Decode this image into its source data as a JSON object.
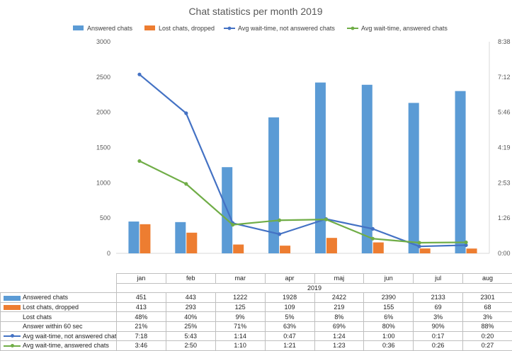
{
  "chart_data": {
    "type": "bar",
    "title": "Chat statistics per month 2019",
    "year_label": "2019",
    "categories": [
      "jan",
      "feb",
      "mar",
      "apr",
      "maj",
      "jun",
      "jul",
      "aug"
    ],
    "y_left": {
      "ylim": [
        0,
        3000
      ],
      "ticks": [
        "0",
        "500",
        "1000",
        "1500",
        "2000",
        "2500",
        "3000"
      ]
    },
    "y_right": {
      "ylim_seconds": [
        0,
        518
      ],
      "ticks": [
        "0:00",
        "1:26",
        "2:53",
        "4:19",
        "5:46",
        "7:12",
        "8:38"
      ]
    },
    "legend_position": "top",
    "gridlines": false,
    "series": [
      {
        "name": "Answered chats",
        "kind": "bar",
        "axis": "left",
        "color": "#5b9bd5",
        "values": [
          451,
          443,
          1222,
          1928,
          2422,
          2390,
          2133,
          2301
        ],
        "labels": [
          "451",
          "443",
          "1222",
          "1928",
          "2422",
          "2390",
          "2133",
          "2301"
        ]
      },
      {
        "name": "Lost chats, dropped",
        "kind": "bar",
        "axis": "left",
        "color": "#ed7d31",
        "values": [
          413,
          293,
          125,
          109,
          219,
          155,
          69,
          68
        ],
        "labels": [
          "413",
          "293",
          "125",
          "109",
          "219",
          "155",
          "69",
          "68"
        ]
      },
      {
        "name": "Avg wait-time, not answered chats",
        "kind": "line",
        "axis": "right",
        "color": "#4472c4",
        "values_seconds": [
          438,
          343,
          74,
          47,
          84,
          60,
          17,
          20
        ],
        "labels": [
          "7:18",
          "5:43",
          "1:14",
          "0:47",
          "1:24",
          "1:00",
          "0:17",
          "0:20"
        ]
      },
      {
        "name": "Avg wait-time, answered chats",
        "kind": "line",
        "axis": "right",
        "color": "#70ad47",
        "values_seconds": [
          226,
          170,
          70,
          81,
          83,
          36,
          26,
          27
        ],
        "labels": [
          "3:46",
          "2:50",
          "1:10",
          "1:21",
          "1:23",
          "0:36",
          "0:26",
          "0:27"
        ]
      }
    ],
    "table_rows": [
      {
        "name": "Lost chats",
        "labels": [
          "48%",
          "40%",
          "9%",
          "5%",
          "8%",
          "6%",
          "3%",
          "3%"
        ]
      },
      {
        "name": "Answer within 60 sec",
        "labels": [
          "21%",
          "25%",
          "71%",
          "63%",
          "69%",
          "80%",
          "90%",
          "88%"
        ]
      }
    ]
  }
}
